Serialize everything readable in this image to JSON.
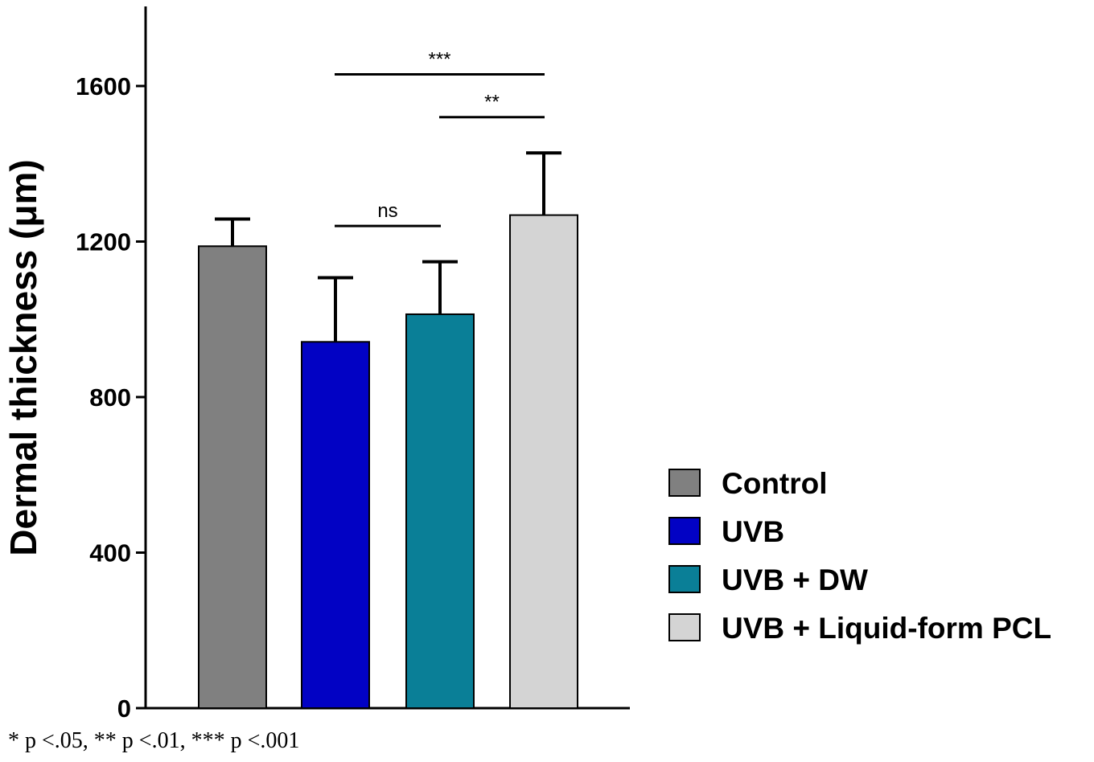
{
  "chart_data": {
    "type": "bar",
    "title": "",
    "xlabel": "",
    "ylabel": "Dermal thickness (μm)",
    "ylim": [
      0,
      1800
    ],
    "yticks": [
      0,
      400,
      800,
      1200,
      1600
    ],
    "grid": false,
    "legend_position": "right",
    "categories": [
      "Control",
      "UVB",
      "UVB + DW",
      "UVB + Liquid-form PCL"
    ],
    "values": [
      1188,
      942,
      1013,
      1268
    ],
    "error": [
      70,
      165,
      135,
      160
    ],
    "colors": [
      "#808080",
      "#0202c4",
      "#0a7f97",
      "#d4d4d4"
    ],
    "significance": [
      {
        "from": 1,
        "to": 3,
        "label": "***",
        "level": 1630
      },
      {
        "from": 2,
        "to": 3,
        "label": "**",
        "level": 1520
      },
      {
        "from": 1,
        "to": 2,
        "label": "ns",
        "level": 1240
      }
    ]
  },
  "footnote": "* p <.05, ** p <.01, *** p <.001"
}
